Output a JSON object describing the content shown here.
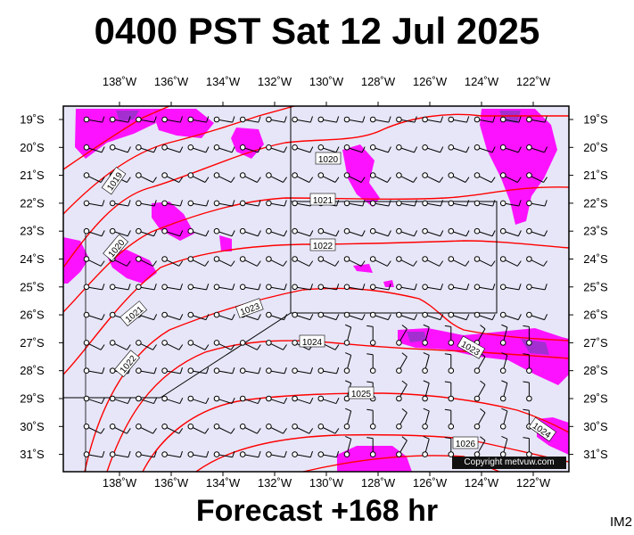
{
  "title": "0400 PST Sat 12 Jul 2025",
  "forecast_label": "Forecast +168 hr",
  "image_code": "IM2",
  "copyright": "Copyright metvuw.com",
  "map": {
    "lon_range": [
      -140,
      -120.5
    ],
    "lat_range": [
      -31.9,
      -18.6
    ],
    "lon_ticks": [
      "138˚W",
      "136˚W",
      "134˚W",
      "132˚W",
      "130˚W",
      "128˚W",
      "126˚W",
      "124˚W",
      "122˚W"
    ],
    "lat_ticks": [
      "19˚S",
      "20˚S",
      "21˚S",
      "22˚S",
      "23˚S",
      "24˚S",
      "25˚S",
      "26˚S",
      "27˚S",
      "28˚S",
      "29˚S",
      "30˚S",
      "31˚S"
    ],
    "colors": {
      "ocean": "#e6e6f8",
      "isobar": "#ff0000",
      "rain_light": "#ff00ff",
      "rain_heavy": "#9933cc",
      "station": "#000000"
    },
    "isobar_labels": [
      "1019",
      "1020",
      "1020",
      "1021",
      "1021",
      "1022",
      "1022",
      "1023",
      "1024",
      "1025",
      "1026",
      "1023",
      "1024"
    ]
  }
}
